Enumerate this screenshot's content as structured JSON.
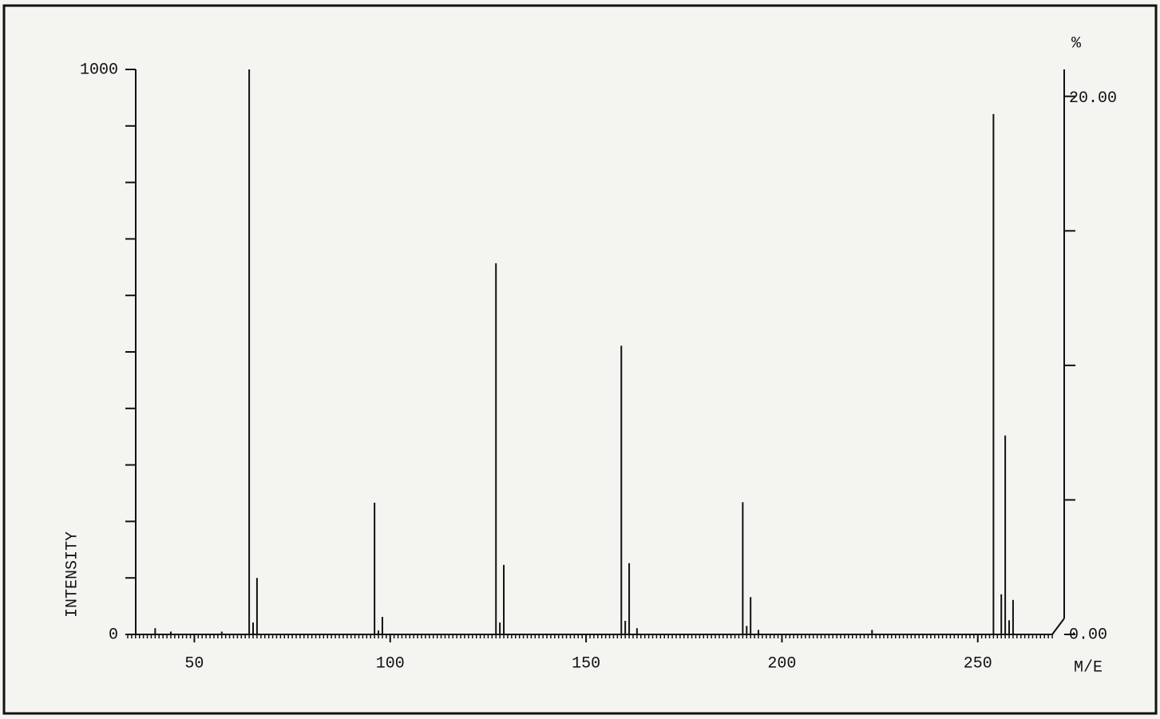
{
  "chart_data": {
    "type": "stem",
    "x_label": "M/E",
    "y_label": "INTENSITY",
    "y2_label": "%",
    "x": [
      40,
      44,
      57,
      64,
      65,
      66,
      96,
      97,
      98,
      127,
      128,
      129,
      159,
      160,
      161,
      163,
      190,
      191,
      192,
      194,
      223,
      254,
      256,
      257,
      258,
      259
    ],
    "series": [
      {
        "color": "#111111",
        "values": [
          11,
          5,
          5,
          1000,
          21,
          100,
          233,
          7,
          31,
          657,
          21,
          123,
          511,
          24,
          126,
          11,
          234,
          15,
          66,
          8,
          8,
          921,
          71,
          352,
          25,
          61
        ]
      }
    ],
    "xlim": [
      33,
      269
    ],
    "xticks": [
      50,
      100,
      150,
      200,
      250
    ],
    "xminorstep": 1,
    "ylim": [
      0,
      1000
    ],
    "yticks": [
      0,
      1000
    ],
    "yminorticks": [
      100,
      200,
      300,
      400,
      500,
      600,
      700,
      800,
      900
    ],
    "y2lim": [
      0,
      21
    ],
    "y2ticks": [
      {
        "value": 0,
        "label": "0.00"
      },
      {
        "value": 20,
        "label": "20.00"
      }
    ],
    "y2minorticks": [
      5,
      10,
      15
    ]
  }
}
